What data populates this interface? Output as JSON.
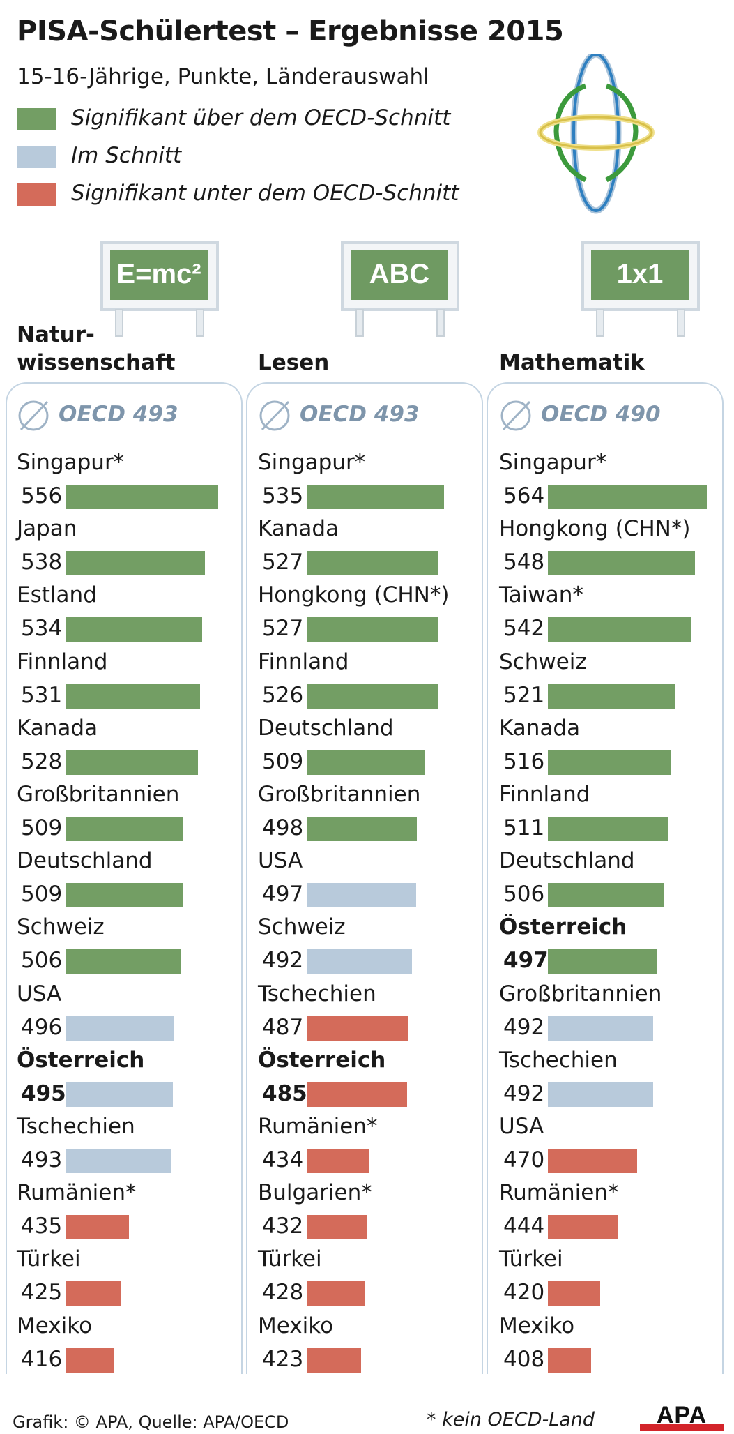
{
  "title": "PISA-Schülertest – Ergebnisse 2015",
  "subtitle": "15-16-Jährige, Punkte, Länderauswahl",
  "legend": [
    {
      "label": "Signifikant über dem OECD-Schnitt",
      "color": "#739e64"
    },
    {
      "label": "Im Schnitt",
      "color": "#b8cadb"
    },
    {
      "label": "Signifikant unter dem OECD-Schnitt",
      "color": "#d46b5a"
    }
  ],
  "colors": {
    "above": "#739e64",
    "avg": "#b8cadb",
    "below": "#d46b5a",
    "frame": "#c5d5e3",
    "board": "#6f9a62"
  },
  "icons": [
    "globe-icon",
    "chalkboard-icon",
    "average-symbol-icon",
    "apa-logo"
  ],
  "chart_data": [
    {
      "type": "bar",
      "board_label": "E=mc²",
      "title_lines": [
        "Natur-",
        "wissenschaft"
      ],
      "oecd_label": "OECD 493",
      "categories": [
        "Singapur*",
        "Japan",
        "Estland",
        "Finnland",
        "Kanada",
        "Großbritannien",
        "Deutschland",
        "Schweiz",
        "USA",
        "Österreich",
        "Tschechien",
        "Rumänien*",
        "Türkei",
        "Mexiko"
      ],
      "values": [
        556,
        538,
        534,
        531,
        528,
        509,
        509,
        506,
        496,
        495,
        493,
        435,
        425,
        416
      ],
      "status": [
        "above",
        "above",
        "above",
        "above",
        "above",
        "above",
        "above",
        "above",
        "avg",
        "avg",
        "avg",
        "below",
        "below",
        "below"
      ],
      "highlight": "Österreich"
    },
    {
      "type": "bar",
      "board_label": "ABC",
      "title_lines": [
        "Lesen"
      ],
      "oecd_label": "OECD 493",
      "categories": [
        "Singapur*",
        "Kanada",
        "Hongkong (CHN*)",
        "Finnland",
        "Deutschland",
        "Großbritannien",
        "USA",
        "Schweiz",
        "Tschechien",
        "Österreich",
        "Rumänien*",
        "Bulgarien*",
        "Türkei",
        "Mexiko"
      ],
      "values": [
        535,
        527,
        527,
        526,
        509,
        498,
        497,
        492,
        487,
        485,
        434,
        432,
        428,
        423
      ],
      "status": [
        "above",
        "above",
        "above",
        "above",
        "above",
        "above",
        "avg",
        "avg",
        "below",
        "below",
        "below",
        "below",
        "below",
        "below"
      ],
      "highlight": "Österreich"
    },
    {
      "type": "bar",
      "board_label": "1x1",
      "title_lines": [
        "Mathematik"
      ],
      "oecd_label": "OECD 490",
      "categories": [
        "Singapur*",
        "Hongkong (CHN*)",
        "Taiwan*",
        "Schweiz",
        "Kanada",
        "Finnland",
        "Deutschland",
        "Österreich",
        "Großbritannien",
        "Tschechien",
        "USA",
        "Rumänien*",
        "Türkei",
        "Mexiko"
      ],
      "values": [
        564,
        548,
        542,
        521,
        516,
        511,
        506,
        497,
        492,
        492,
        470,
        444,
        420,
        408
      ],
      "status": [
        "above",
        "above",
        "above",
        "above",
        "above",
        "above",
        "above",
        "above",
        "avg",
        "avg",
        "below",
        "below",
        "below",
        "below"
      ],
      "highlight": "Österreich"
    }
  ],
  "footer": {
    "credit": "Grafik: © APA, Quelle: APA/OECD",
    "note": "* kein OECD-Land",
    "logo": "APA"
  }
}
